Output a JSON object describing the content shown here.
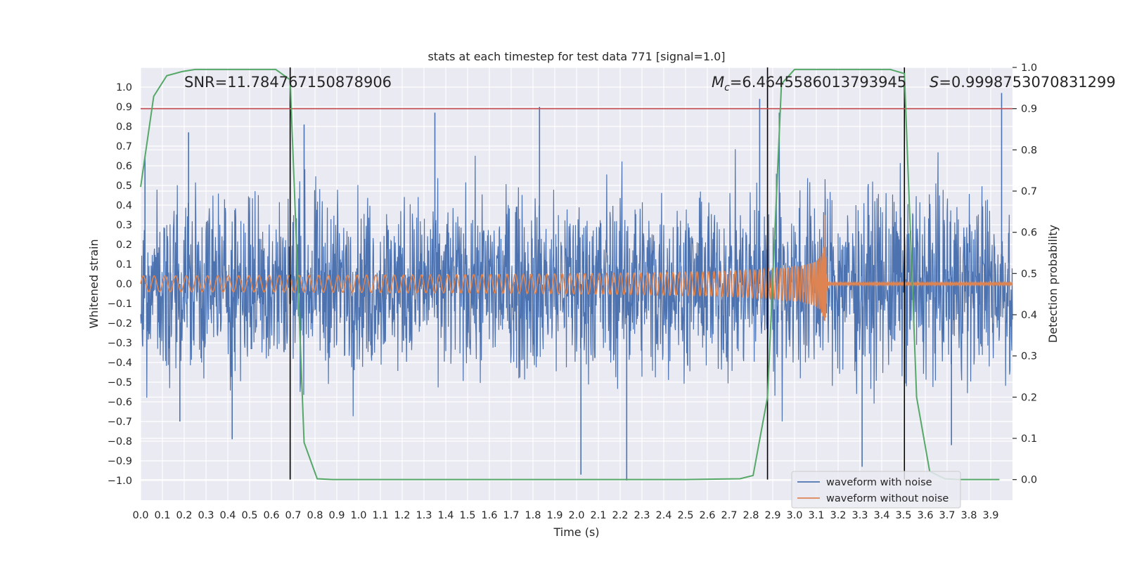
{
  "chart_data": {
    "type": "line",
    "title": "stats at each timestep for test data 771 [signal=1.0]",
    "xlabel": "Time (s)",
    "ylabel": "Whitened strain",
    "y2label": "Detection probability",
    "xlim": [
      0.0,
      4.0
    ],
    "ylim": [
      -1.1,
      1.1
    ],
    "y2lim": [
      -0.05,
      1.0
    ],
    "xticks": [
      "0.0",
      "0.1",
      "0.2",
      "0.3",
      "0.4",
      "0.5",
      "0.6",
      "0.7",
      "0.8",
      "0.9",
      "1.0",
      "1.1",
      "1.2",
      "1.3",
      "1.4",
      "1.5",
      "1.6",
      "1.7",
      "1.8",
      "1.9",
      "2.0",
      "2.1",
      "2.2",
      "2.3",
      "2.4",
      "2.5",
      "2.6",
      "2.7",
      "2.8",
      "2.9",
      "3.0",
      "3.1",
      "3.2",
      "3.3",
      "3.4",
      "3.5",
      "3.6",
      "3.7",
      "3.8",
      "3.9"
    ],
    "yticks": [
      "1.0",
      "0.9",
      "0.8",
      "0.7",
      "0.6",
      "0.5",
      "0.4",
      "0.3",
      "0.2",
      "0.1",
      "0.0",
      "−0.1",
      "−0.2",
      "−0.3",
      "−0.4",
      "−0.5",
      "−0.6",
      "−0.7",
      "−0.8",
      "−0.9",
      "−1.0"
    ],
    "y2ticks": [
      "1.0",
      "0.9",
      "0.8",
      "0.7",
      "0.6",
      "0.5",
      "0.4",
      "0.3",
      "0.2",
      "0.1",
      "0.0"
    ],
    "grid": true,
    "legend": {
      "position": "bottom-right",
      "entries": [
        "waveform with noise",
        "waveform without noise"
      ]
    },
    "annotations": {
      "snr": "SNR=11.784767150878906",
      "mc_symbol": "M",
      "mc_sub": "c",
      "mc_value": "=6.4645586013793945",
      "s_symbol": "S",
      "s_value": "=0.9998753070831299"
    },
    "threshold_line": {
      "y2": 0.9,
      "color": "#c44e52"
    },
    "vertical_lines": [
      0.686,
      2.876,
      3.504
    ],
    "noise_envelope": {
      "x": [
        0.0,
        0.5,
        1.0,
        1.5,
        2.0,
        2.5,
        3.0,
        3.5,
        4.0
      ],
      "upper": [
        0.55,
        0.55,
        0.5,
        0.5,
        0.55,
        0.5,
        0.55,
        0.55,
        0.55
      ],
      "lower": [
        -0.55,
        -0.55,
        -0.5,
        -0.55,
        -0.55,
        -0.5,
        -0.5,
        -0.55,
        -0.55
      ]
    },
    "noise_peaks": [
      {
        "t": 0.02,
        "v": 0.65
      },
      {
        "t": 0.22,
        "v": 0.77
      },
      {
        "t": 0.18,
        "v": -0.7
      },
      {
        "t": 0.42,
        "v": -0.79
      },
      {
        "t": 0.75,
        "v": 0.81
      },
      {
        "t": 1.35,
        "v": 0.87
      },
      {
        "t": 1.83,
        "v": 0.9
      },
      {
        "t": 2.02,
        "v": -0.97
      },
      {
        "t": 2.23,
        "v": -1.0
      },
      {
        "t": 2.84,
        "v": 0.94
      },
      {
        "t": 2.93,
        "v": 0.87
      },
      {
        "t": 3.31,
        "v": -0.93
      },
      {
        "t": 3.95,
        "v": 0.97
      },
      {
        "t": 3.72,
        "v": -0.82
      }
    ],
    "series": [
      {
        "name": "waveform with noise",
        "color": "#4c72b0",
        "note": "whitened strain, noise-dominated, amplitude ~±0.5 with peaks to ±1.0"
      },
      {
        "name": "waveform without noise",
        "color": "#dd8452",
        "chirp": {
          "t_merger": 3.14,
          "peak": 0.35,
          "trough": -0.3,
          "start_amplitude": 0.04,
          "start_freq_hz": 20,
          "ringdown_amplitude": 0.005
        }
      },
      {
        "name": "detection probability",
        "color": "#55a868",
        "axis": "y2",
        "x": [
          0.0,
          0.06,
          0.12,
          0.19,
          0.25,
          0.31,
          0.38,
          0.44,
          0.5,
          0.56,
          0.62,
          0.686,
          0.75,
          0.81,
          0.88,
          0.94,
          1.0,
          1.5,
          2.0,
          2.5,
          2.75,
          2.81,
          2.876,
          2.94,
          3.0,
          3.06,
          3.12,
          3.19,
          3.25,
          3.31,
          3.38,
          3.44,
          3.504,
          3.56,
          3.62,
          3.69,
          3.75,
          3.81,
          3.88,
          3.94
        ],
        "values": [
          0.71,
          0.93,
          0.98,
          0.99,
          0.995,
          0.995,
          0.995,
          0.995,
          0.995,
          0.995,
          0.995,
          0.97,
          0.09,
          0.002,
          0.0,
          0.0,
          0.0,
          0.0,
          0.0,
          0.0,
          0.002,
          0.01,
          0.2,
          0.96,
          0.995,
          0.995,
          0.995,
          0.995,
          0.995,
          0.995,
          0.995,
          0.995,
          0.985,
          0.2,
          0.02,
          0.002,
          0.0,
          0.0,
          0.0,
          0.0
        ]
      }
    ]
  }
}
